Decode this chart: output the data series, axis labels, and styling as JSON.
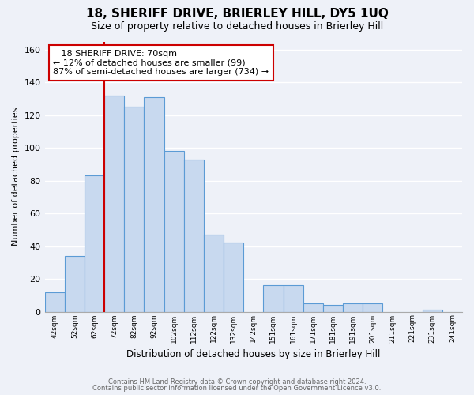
{
  "title": "18, SHERIFF DRIVE, BRIERLEY HILL, DY5 1UQ",
  "subtitle": "Size of property relative to detached houses in Brierley Hill",
  "xlabel": "Distribution of detached houses by size in Brierley Hill",
  "ylabel": "Number of detached properties",
  "bar_labels": [
    "42sqm",
    "52sqm",
    "62sqm",
    "72sqm",
    "82sqm",
    "92sqm",
    "102sqm",
    "112sqm",
    "122sqm",
    "132sqm",
    "142sqm",
    "151sqm",
    "161sqm",
    "171sqm",
    "181sqm",
    "191sqm",
    "201sqm",
    "211sqm",
    "221sqm",
    "231sqm",
    "241sqm"
  ],
  "bar_values": [
    12,
    34,
    83,
    132,
    125,
    131,
    98,
    93,
    47,
    42,
    0,
    16,
    16,
    5,
    4,
    5,
    5,
    0,
    0,
    1,
    0
  ],
  "bar_color": "#c8d9ef",
  "bar_edge_color": "#5b9bd5",
  "annotation_title": "18 SHERIFF DRIVE: 70sqm",
  "annotation_line1": "← 12% of detached houses are smaller (99)",
  "annotation_line2": "87% of semi-detached houses are larger (734) →",
  "annotation_box_color": "#ffffff",
  "annotation_box_edge": "#cc0000",
  "property_line_color": "#cc0000",
  "property_line_index": 2.5,
  "ylim": [
    0,
    165
  ],
  "yticks": [
    0,
    20,
    40,
    60,
    80,
    100,
    120,
    140,
    160
  ],
  "grid_color": "#d0d8e8",
  "footer1": "Contains HM Land Registry data © Crown copyright and database right 2024.",
  "footer2": "Contains public sector information licensed under the Open Government Licence v3.0.",
  "bg_color": "#eef1f8",
  "plot_bg_color": "#eef1f8"
}
